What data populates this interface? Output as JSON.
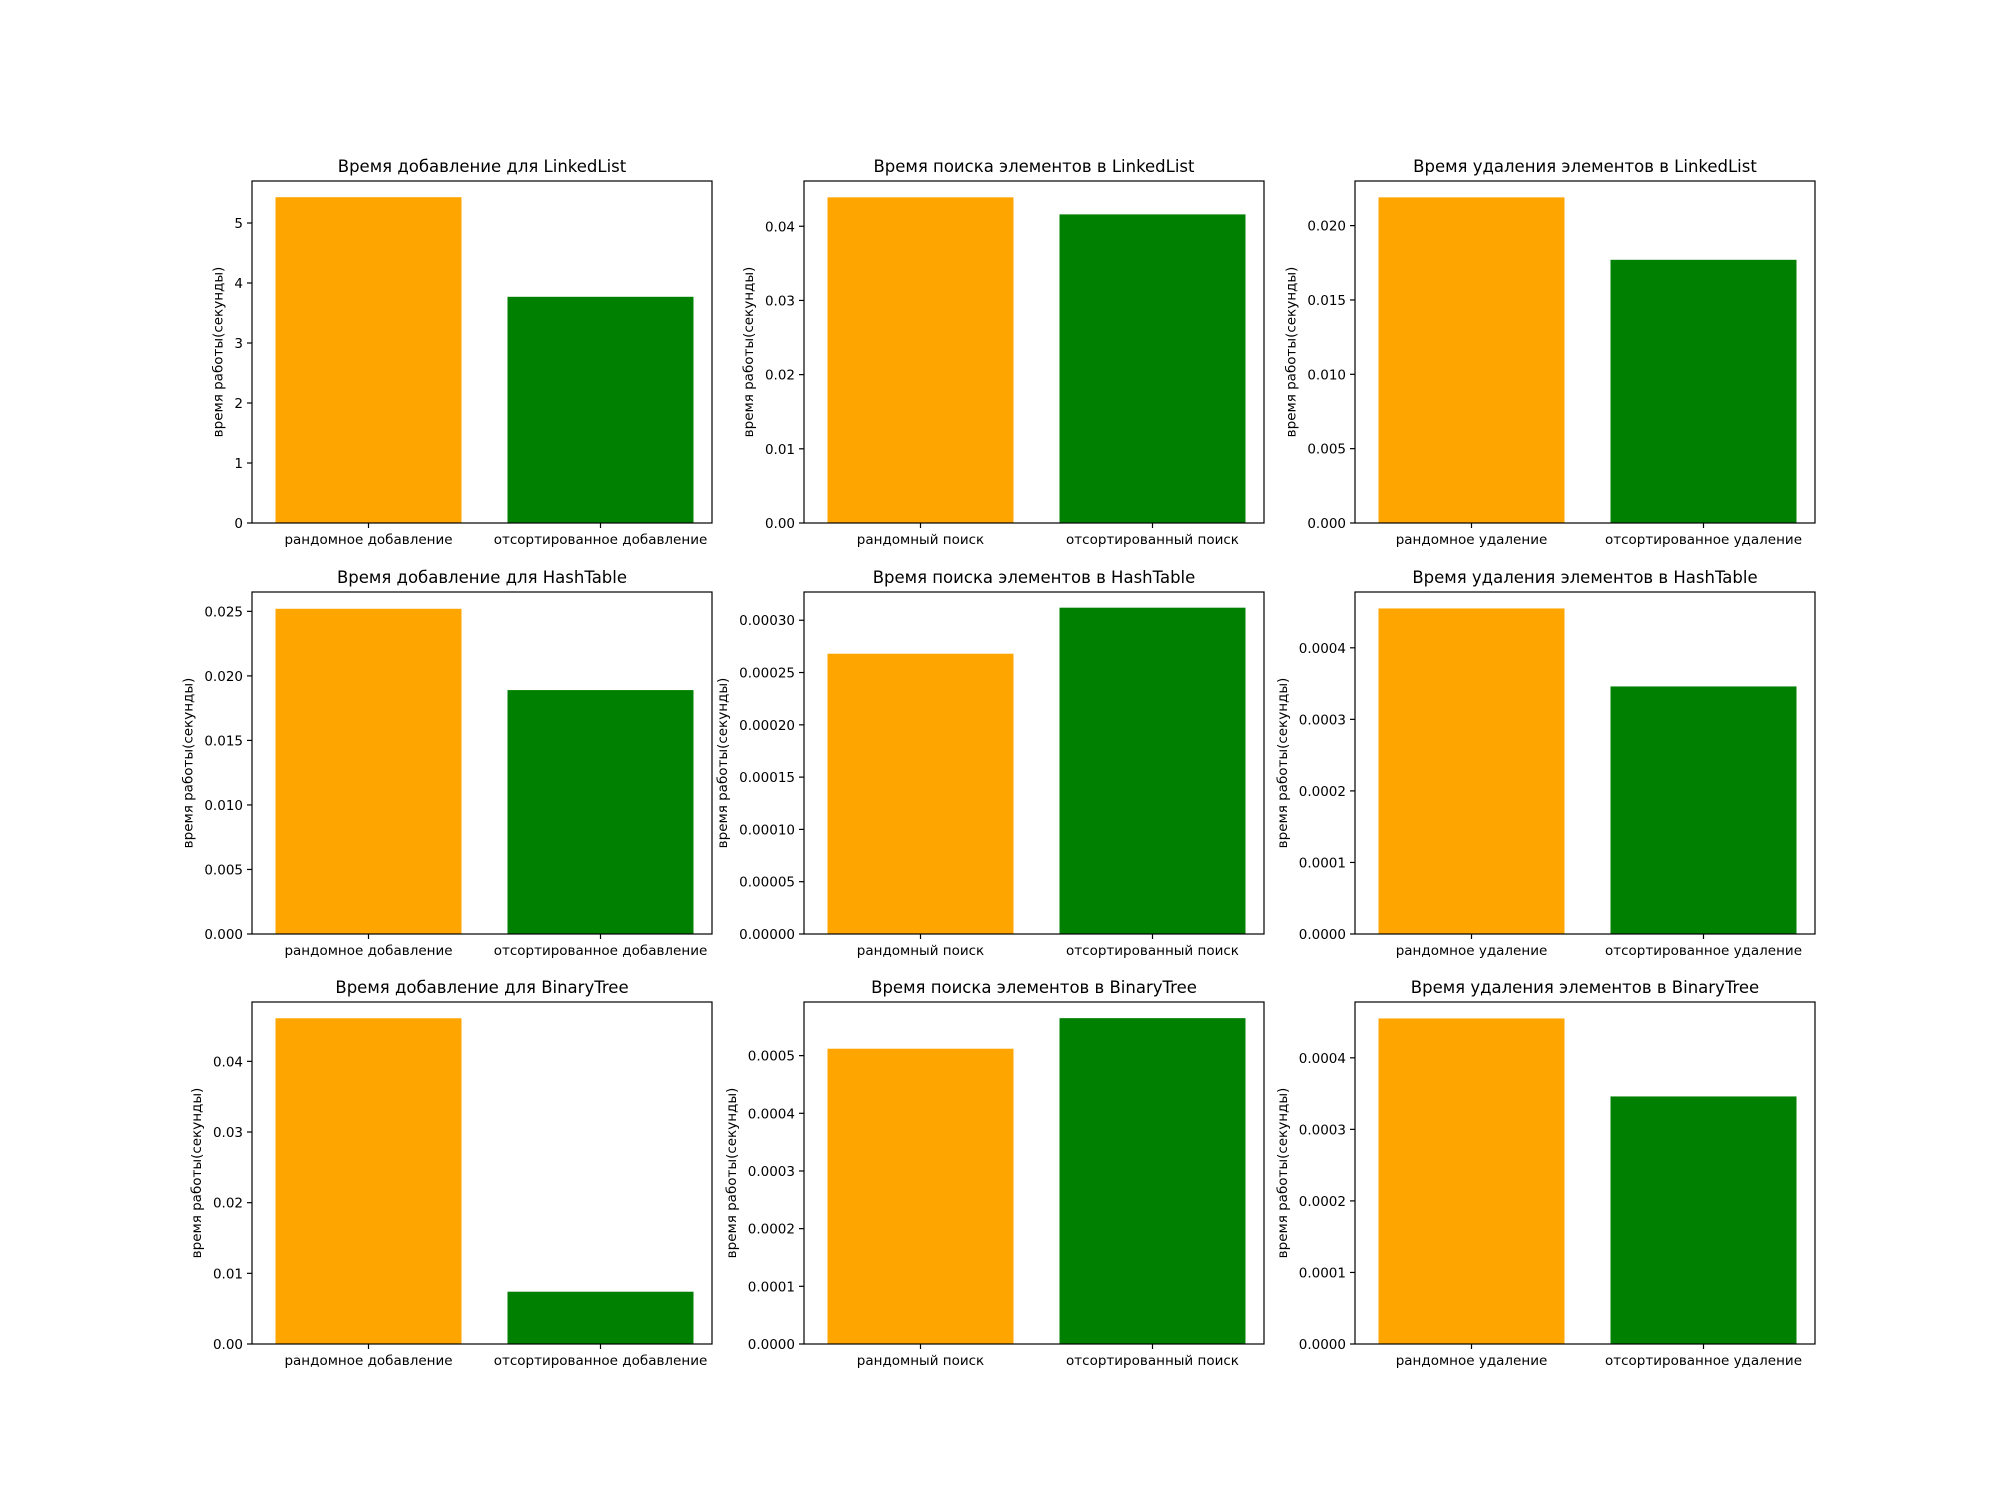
{
  "chart_data": [
    {
      "type": "bar",
      "title": "Время добавление для LinkedList",
      "ylabel": "время работы(секунды)",
      "categories": [
        "рандомное добавление",
        "отсортированное добавление"
      ],
      "values": [
        5.43,
        3.77
      ],
      "colors": [
        "#ffa500",
        "#008000"
      ],
      "ylim": [
        0,
        5.7
      ],
      "yticks": [
        0,
        1,
        2,
        3,
        4,
        5
      ],
      "ytick_labels": [
        "0",
        "1",
        "2",
        "3",
        "4",
        "5"
      ]
    },
    {
      "type": "bar",
      "title": "Время поиска элементов в LinkedList",
      "ylabel": "время работы(секунды)",
      "categories": [
        "рандомный поиск",
        "отсортированный поиск"
      ],
      "values": [
        0.0439,
        0.0416
      ],
      "colors": [
        "#ffa500",
        "#008000"
      ],
      "ylim": [
        0,
        0.0461
      ],
      "yticks": [
        0,
        0.01,
        0.02,
        0.03,
        0.04
      ],
      "ytick_labels": [
        "0.00",
        "0.01",
        "0.02",
        "0.03",
        "0.04"
      ]
    },
    {
      "type": "bar",
      "title": "Время удаления элементов в LinkedList",
      "ylabel": "время работы(секунды)",
      "categories": [
        "рандомное удаление",
        "отсортированное удаление"
      ],
      "values": [
        0.0219,
        0.0177
      ],
      "colors": [
        "#ffa500",
        "#008000"
      ],
      "ylim": [
        0,
        0.023
      ],
      "yticks": [
        0,
        0.005,
        0.01,
        0.015,
        0.02
      ],
      "ytick_labels": [
        "0.000",
        "0.005",
        "0.010",
        "0.015",
        "0.020"
      ]
    },
    {
      "type": "bar",
      "title": "Время добавление для HashTable",
      "ylabel": "время работы(секунды)",
      "categories": [
        "рандомное добавление",
        "отсортированное добавление"
      ],
      "values": [
        0.0252,
        0.0189
      ],
      "colors": [
        "#ffa500",
        "#008000"
      ],
      "ylim": [
        0,
        0.0265
      ],
      "yticks": [
        0,
        0.005,
        0.01,
        0.015,
        0.02,
        0.025
      ],
      "ytick_labels": [
        "0.000",
        "0.005",
        "0.010",
        "0.015",
        "0.020",
        "0.025"
      ]
    },
    {
      "type": "bar",
      "title": "Время поиска элементов в HashTable",
      "ylabel": "время работы(секунды)",
      "categories": [
        "рандомный поиск",
        "отсортированный поиск"
      ],
      "values": [
        0.000268,
        0.000312
      ],
      "colors": [
        "#ffa500",
        "#008000"
      ],
      "ylim": [
        0,
        0.000327
      ],
      "yticks": [
        0,
        5e-05,
        0.0001,
        0.00015,
        0.0002,
        0.00025,
        0.0003
      ],
      "ytick_labels": [
        "0.00000",
        "0.00005",
        "0.00010",
        "0.00015",
        "0.00020",
        "0.00025",
        "0.00030"
      ]
    },
    {
      "type": "bar",
      "title": "Время удаления элементов в HashTable",
      "ylabel": "время работы(секунды)",
      "categories": [
        "рандомное удаление",
        "отсортированное удаление"
      ],
      "values": [
        0.000455,
        0.000346
      ],
      "colors": [
        "#ffa500",
        "#008000"
      ],
      "ylim": [
        0,
        0.000478
      ],
      "yticks": [
        0,
        0.0001,
        0.0002,
        0.0003,
        0.0004
      ],
      "ytick_labels": [
        "0.0000",
        "0.0001",
        "0.0002",
        "0.0003",
        "0.0004"
      ]
    },
    {
      "type": "bar",
      "title": "Время добавление для BinaryTree",
      "ylabel": "время работы(секунды)",
      "categories": [
        "рандомное добавление",
        "отсортированное добавление"
      ],
      "values": [
        0.0461,
        0.0074
      ],
      "colors": [
        "#ffa500",
        "#008000"
      ],
      "ylim": [
        0,
        0.0484
      ],
      "yticks": [
        0,
        0.01,
        0.02,
        0.03,
        0.04
      ],
      "ytick_labels": [
        "0.00",
        "0.01",
        "0.02",
        "0.03",
        "0.04"
      ]
    },
    {
      "type": "bar",
      "title": "Время поиска элементов в BinaryTree",
      "ylabel": "время работы(секунды)",
      "categories": [
        "рандомный поиск",
        "отсортированный поиск"
      ],
      "values": [
        0.000512,
        0.000565
      ],
      "colors": [
        "#ffa500",
        "#008000"
      ],
      "ylim": [
        0,
        0.000593
      ],
      "yticks": [
        0,
        0.0001,
        0.0002,
        0.0003,
        0.0004,
        0.0005
      ],
      "ytick_labels": [
        "0.0000",
        "0.0001",
        "0.0002",
        "0.0003",
        "0.0004",
        "0.0005"
      ]
    },
    {
      "type": "bar",
      "title": "Время удаления элементов в BinaryTree",
      "ylabel": "время работы(секунды)",
      "categories": [
        "рандомное удаление",
        "отсортированное удаление"
      ],
      "values": [
        0.000455,
        0.000346
      ],
      "colors": [
        "#ffa500",
        "#008000"
      ],
      "ylim": [
        0,
        0.000478
      ],
      "yticks": [
        0,
        0.0001,
        0.0002,
        0.0003,
        0.0004
      ],
      "ytick_labels": [
        "0.0000",
        "0.0001",
        "0.0002",
        "0.0003",
        "0.0004"
      ]
    }
  ]
}
